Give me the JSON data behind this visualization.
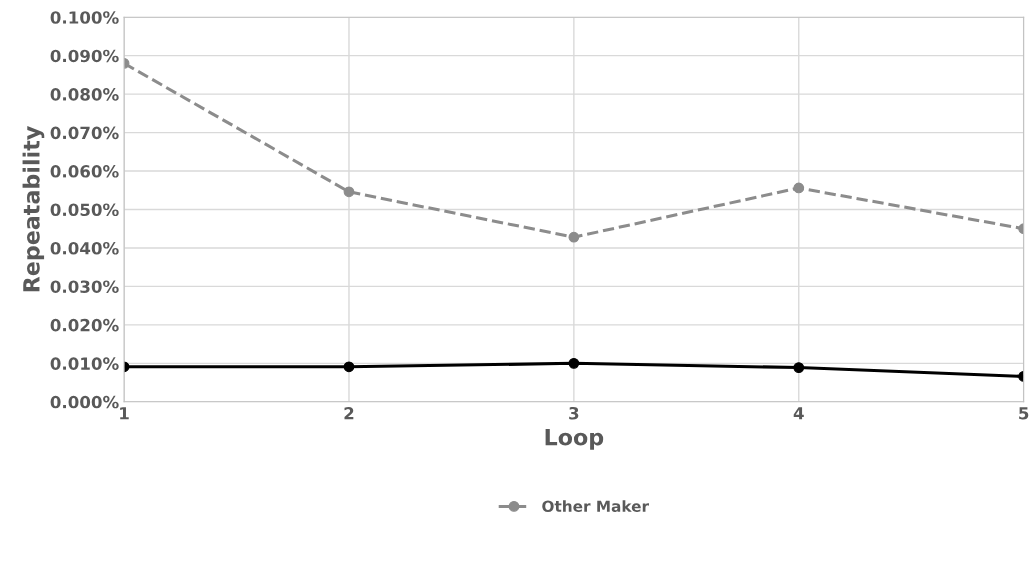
{
  "chart_data": {
    "type": "line",
    "xlabel": "Loop",
    "ylabel": "Repeatability",
    "x": [
      1,
      2,
      3,
      4,
      5
    ],
    "series": [
      {
        "color": "#000000",
        "values": [
          0.0091,
          0.0091,
          0.01,
          0.0089,
          0.0066
        ],
        "line_style": "solid"
      },
      {
        "name": "Other Maker",
        "color": "#8c8c8c",
        "values": [
          0.088,
          0.0546,
          0.0428,
          0.0556,
          0.045
        ],
        "line_style": "dashed"
      }
    ],
    "xlim": [
      1,
      5
    ],
    "xticks": [
      1,
      2,
      3,
      4,
      5
    ],
    "ylim": [
      0,
      0.1
    ],
    "yticks": [
      {
        "value": 0,
        "label": "0.000%"
      },
      {
        "value": 0.01,
        "label": "0.010%"
      },
      {
        "value": 0.02,
        "label": "0.020%"
      },
      {
        "value": 0.03,
        "label": "0.030%"
      },
      {
        "value": 0.04,
        "label": "0.040%"
      },
      {
        "value": 0.05,
        "label": "0.050%"
      },
      {
        "value": 0.06,
        "label": "0.060%"
      },
      {
        "value": 0.07,
        "label": "0.070%"
      },
      {
        "value": 0.08,
        "label": "0.080%"
      },
      {
        "value": 0.09,
        "label": "0.090%"
      },
      {
        "value": 0.1,
        "label": "0.100%"
      }
    ],
    "grid": true,
    "legend": "bottom",
    "marker": "circle"
  }
}
